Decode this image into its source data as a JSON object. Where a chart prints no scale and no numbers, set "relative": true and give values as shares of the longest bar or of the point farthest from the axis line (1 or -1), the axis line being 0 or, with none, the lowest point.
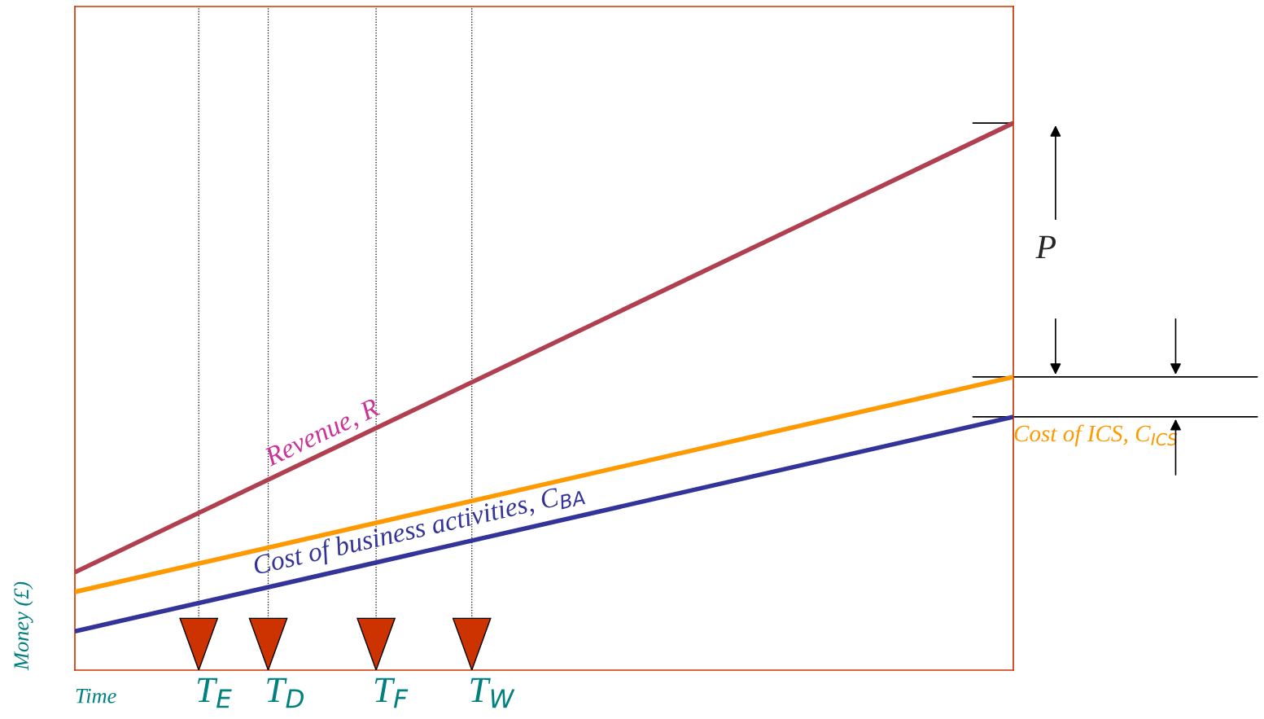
{
  "chart_data": {
    "type": "line",
    "relative": true,
    "xlabel": "Time",
    "ylabel": "Money (£)",
    "categories": [
      null,
      null
    ],
    "series": [
      {
        "name": "Revenue, R",
        "color": "#b04050",
        "values": [
          0.179,
          1
        ]
      },
      {
        "name": "Cost of ICS, C$_{ICS}$",
        "color": "#ff9900",
        "values": [
          0.143,
          0.536
        ]
      },
      {
        "name": "Cost of business activities, C$_{BA}$",
        "color": "#333399",
        "values": [
          0.071,
          0.463
        ]
      }
    ],
    "annotations": [
      "P",
      "T$_{E}$",
      "T$_{D}$",
      "T$_{F}$",
      "T$_{W}$"
    ],
    "legend": false,
    "marker": "none",
    "line_style": "solid"
  }
}
